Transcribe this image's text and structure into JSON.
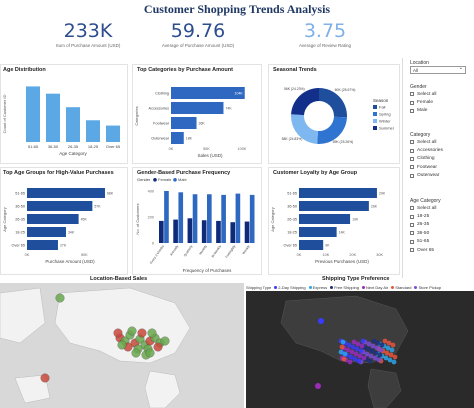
{
  "title": "Customer Shopping Trends Analysis",
  "kpis": [
    {
      "value": "233K",
      "label": "Sum of Purchase Amount (USD)"
    },
    {
      "value": "59.76",
      "label": "Average of Purchase Amount (USD)"
    },
    {
      "value": "3.75",
      "label": "Average of Review Rating"
    }
  ],
  "chart_data": [
    {
      "type": "bar",
      "title": "Age Distribution",
      "xlabel": "Age Category",
      "ylabel": "Count of Customer ID",
      "categories": [
        "51-65",
        "36-50",
        "26-35",
        "18-25",
        "Over 65"
      ],
      "values": [
        1150,
        1000,
        720,
        450,
        340
      ],
      "ylim": [
        0,
        1200
      ],
      "color": "#5ba8e5"
    },
    {
      "type": "bar",
      "orientation": "horizontal",
      "title": "Top Categories by Purchase Amount",
      "xlabel": "Sales (USD)",
      "ylabel": "Categories",
      "categories": [
        "Clothing",
        "Accessories",
        "Footwear",
        "Outerwear"
      ],
      "values": [
        104,
        74,
        36,
        18
      ],
      "data_labels": [
        "104K",
        "74K",
        "36K",
        "18K"
      ],
      "ticks": [
        "0K",
        "50K",
        "100K"
      ],
      "color": "#2f68c0"
    },
    {
      "type": "pie",
      "title": "Seasonal Trends",
      "legend_title": "Season",
      "labels": [
        "Fall",
        "Spring",
        "Winter",
        "Summer"
      ],
      "values": [
        60,
        59,
        58,
        56
      ],
      "data_labels": [
        "60K (25.67%)",
        "59K (25.26%)",
        "58K (24.83%)",
        "56K (24.23%)"
      ],
      "colors": [
        "#1f4e9c",
        "#2f74d0",
        "#7fb8f0",
        "#12308a"
      ]
    },
    {
      "type": "bar",
      "orientation": "horizontal",
      "title": "Top Age Groups for High-Value Purchases",
      "xlabel": "Purchase Amount (USD)",
      "ylabel": "Age Category",
      "categories": [
        "51-65",
        "36-50",
        "26-35",
        "18-25",
        "Over 65"
      ],
      "values": [
        68,
        57,
        45,
        34,
        27
      ],
      "data_labels": [
        "68K",
        "57K",
        "45K",
        "34K",
        "27K"
      ],
      "ticks": [
        "0K",
        "50K"
      ],
      "color": "#1f4e9c"
    },
    {
      "type": "bar",
      "title": "Gender-Based Purchase Frequency",
      "xlabel": "Frequency of Purchases",
      "ylabel": "No. of Customers",
      "legend_title": "Gender",
      "categories": [
        "Every 3 Months",
        "Annually",
        "Quarterly",
        "Monthly",
        "Bi-Weekly",
        "Fortnightly",
        "Weekly"
      ],
      "series": [
        {
          "name": "Female",
          "values": [
            170,
            180,
            190,
            175,
            170,
            160,
            165
          ]
        },
        {
          "name": "Male",
          "values": [
            420,
            390,
            375,
            375,
            370,
            380,
            370
          ]
        }
      ],
      "ticks": [
        "0",
        "200",
        "400"
      ],
      "ylim": [
        0,
        400
      ],
      "colors": [
        "#102a7a",
        "#2f68c0"
      ]
    },
    {
      "type": "bar",
      "orientation": "horizontal",
      "title": "Customer Loyalty by Age Group",
      "xlabel": "Previous Purchases (USD)",
      "ylabel": "Age Category",
      "categories": [
        "51-65",
        "36-50",
        "26-35",
        "18-25",
        "Over 65"
      ],
      "values": [
        29,
        26,
        19,
        14,
        9
      ],
      "data_labels": [
        "29K",
        "26K",
        "19K",
        "14K",
        "9K"
      ],
      "ticks": [
        "0K",
        "10K",
        "20K",
        "30K"
      ],
      "color": "#1f4e9c"
    }
  ],
  "maps": {
    "left_title": "Location-Based Sales",
    "right_title": "Shipping Type Preference",
    "shipping_legend_title": "Shipping Type",
    "shipping_types": [
      {
        "name": "2-Day Shipping",
        "color": "#3a3aff"
      },
      {
        "name": "Express",
        "color": "#2ba5e8"
      },
      {
        "name": "Free Shipping",
        "color": "#1d2f7a"
      },
      {
        "name": "Next Day Air",
        "color": "#9a2cb8"
      },
      {
        "name": "Standard",
        "color": "#e8543c"
      },
      {
        "name": "Store Pickup",
        "color": "#7b4bd8"
      }
    ]
  },
  "filters": {
    "location": {
      "title": "Location",
      "value": "All"
    },
    "gender": {
      "title": "Gender",
      "items": [
        "Select all",
        "Female",
        "Male"
      ]
    },
    "category": {
      "title": "Category",
      "items": [
        "Select all",
        "Accessories",
        "Clothing",
        "Footwear",
        "Outerwear"
      ]
    },
    "age": {
      "title": "Age Category",
      "items": [
        "Select all",
        "18-25",
        "26-35",
        "36-50",
        "51-65",
        "Over 65"
      ]
    }
  }
}
